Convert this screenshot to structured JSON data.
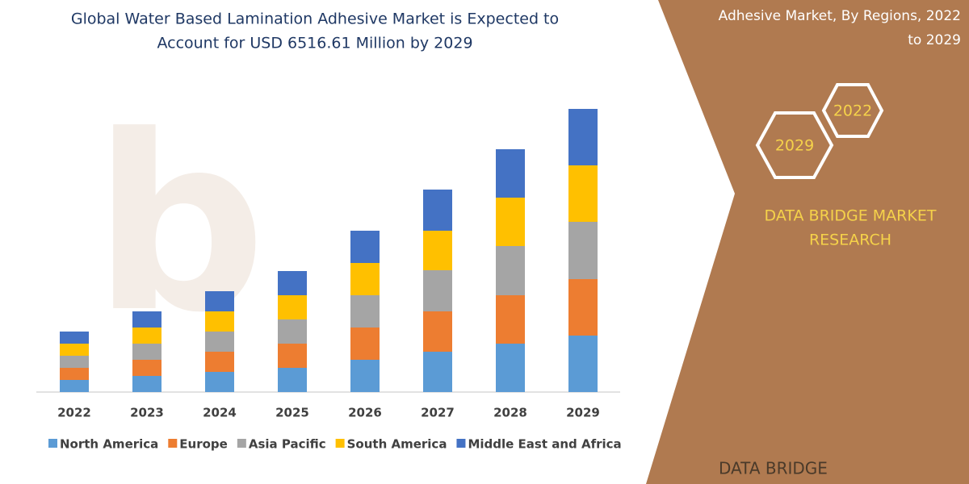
{
  "chart_data": {
    "type": "stacked-bar",
    "title": [
      "Global Water Based Lamination Adhesive Market is Expected to",
      "Account for USD 6516.61 Million by 2029"
    ],
    "categories": [
      "2022",
      "2023",
      "2024",
      "2025",
      "2026",
      "2027",
      "2028",
      "2029"
    ],
    "series": [
      {
        "name": "North America",
        "color": "#5b9bd5",
        "values": [
          15,
          20,
          25,
          30,
          40,
          50,
          60,
          70
        ]
      },
      {
        "name": "Europe",
        "color": "#ed7d31",
        "values": [
          15,
          20,
          25,
          30,
          40,
          50,
          60,
          70
        ]
      },
      {
        "name": "Asia Pacific",
        "color": "#a5a5a5",
        "values": [
          15,
          20,
          25,
          30,
          40,
          51,
          61,
          71
        ]
      },
      {
        "name": "South America",
        "color": "#ffc000",
        "values": [
          15,
          20,
          25,
          30,
          40,
          49,
          60,
          70
        ]
      },
      {
        "name": "Middle East and Africa",
        "color": "#4472c4",
        "values": [
          15,
          20,
          25,
          30,
          40,
          51,
          60,
          70
        ]
      }
    ]
  },
  "panel": {
    "heading": [
      "Adhesive Market, By Regions, 2022",
      "to 2029"
    ],
    "badges": [
      "2022",
      "2029"
    ],
    "brand": [
      "DATA BRIDGE MARKET",
      "RESEARCH"
    ],
    "logo": "DATA BRIDGE"
  }
}
